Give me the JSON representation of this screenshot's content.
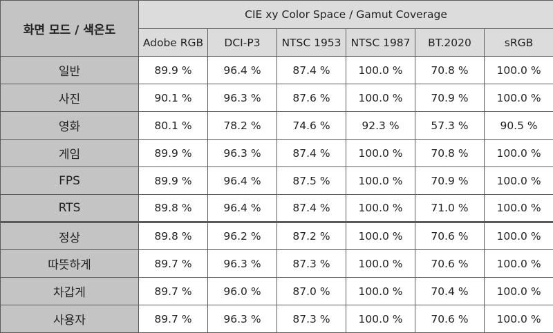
{
  "table": {
    "corner_label": "화면 모드 / 색온도",
    "group_title": "CIE xy Color Space / Gamut Coverage",
    "columns": [
      "Adobe RGB",
      "DCI-P3",
      "NTSC 1953",
      "NTSC 1987",
      "BT.2020",
      "sRGB"
    ],
    "rows": [
      {
        "label": "일반",
        "values": [
          "89.9 %",
          "96.4 %",
          "87.4 %",
          "100.0 %",
          "70.8 %",
          "100.0 %"
        ]
      },
      {
        "label": "사진",
        "values": [
          "90.1 %",
          "96.3 %",
          "87.6 %",
          "100.0 %",
          "70.9 %",
          "100.0 %"
        ]
      },
      {
        "label": "영화",
        "values": [
          "80.1 %",
          "78.2 %",
          "74.6 %",
          "92.3 %",
          "57.3 %",
          "90.5 %"
        ]
      },
      {
        "label": "게임",
        "values": [
          "89.9 %",
          "96.3 %",
          "87.4 %",
          "100.0 %",
          "70.8 %",
          "100.0 %"
        ]
      },
      {
        "label": "FPS",
        "values": [
          "89.9 %",
          "96.4 %",
          "87.5 %",
          "100.0 %",
          "70.9 %",
          "100.0 %"
        ]
      },
      {
        "label": "RTS",
        "values": [
          "89.8 %",
          "96.4 %",
          "87.4 %",
          "100.0 %",
          "71.0 %",
          "100.0 %"
        ]
      },
      {
        "label": "정상",
        "values": [
          "89.8 %",
          "96.2 %",
          "87.2 %",
          "100.0 %",
          "70.6 %",
          "100.0 %"
        ]
      },
      {
        "label": "따뜻하게",
        "values": [
          "89.7 %",
          "96.3 %",
          "87.3 %",
          "100.0 %",
          "70.6 %",
          "100.0 %"
        ]
      },
      {
        "label": "차갑게",
        "values": [
          "89.7 %",
          "96.0 %",
          "87.0 %",
          "100.0 %",
          "70.4 %",
          "100.0 %"
        ]
      },
      {
        "label": "사용자",
        "values": [
          "89.7 %",
          "96.3 %",
          "87.3 %",
          "100.0 %",
          "70.6 %",
          "100.0 %"
        ]
      }
    ]
  }
}
